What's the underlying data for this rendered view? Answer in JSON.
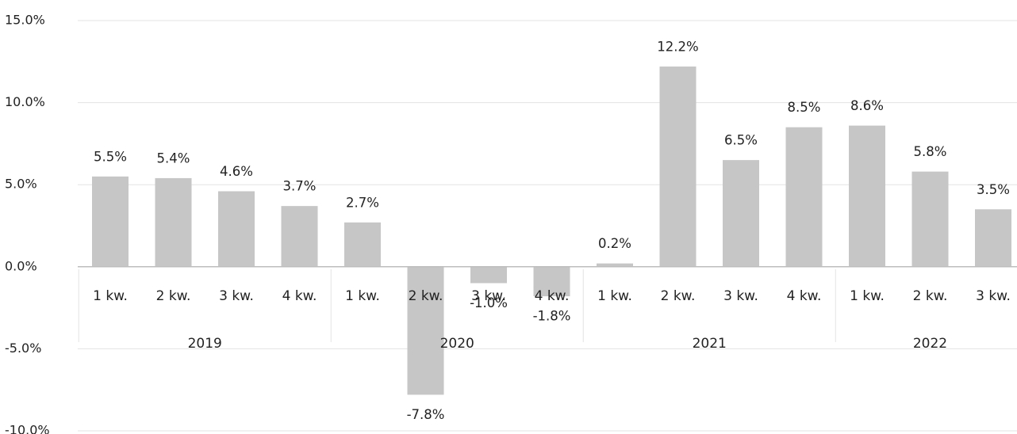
{
  "chart_data": {
    "type": "bar",
    "ylim": [
      -10,
      15
    ],
    "grid": true,
    "y_ticks": [
      15,
      10,
      5,
      0,
      -5,
      -10
    ],
    "y_tick_labels": [
      "15.0%",
      "10.0%",
      "5.0%",
      "0.0%",
      "-5.0%",
      "-10.0%"
    ],
    "groups": [
      {
        "label": "2019",
        "categories": [
          "1 kw.",
          "2 kw.",
          "3 kw.",
          "4 kw."
        ]
      },
      {
        "label": "2020",
        "categories": [
          "1 kw.",
          "2 kw.",
          "3 kw.",
          "4 kw."
        ]
      },
      {
        "label": "2021",
        "categories": [
          "1 kw.",
          "2 kw.",
          "3 kw.",
          "4 kw."
        ]
      },
      {
        "label": "2022",
        "categories": [
          "1 kw.",
          "2 kw.",
          "3 kw."
        ]
      }
    ],
    "series": [
      {
        "values": [
          5.5,
          5.4,
          4.6,
          3.7,
          2.7,
          -7.8,
          -1.0,
          -1.8,
          0.2,
          12.2,
          6.5,
          8.5,
          8.6,
          5.8,
          3.5
        ],
        "labels": [
          "5.5%",
          "5.4%",
          "4.6%",
          "3.7%",
          "2.7%",
          "-7.8%",
          "-1.0%",
          "-1.8%",
          "0.2%",
          "12.2%",
          "6.5%",
          "8.5%",
          "8.6%",
          "5.8%",
          "3.5%"
        ],
        "color": "#c6c6c6"
      }
    ],
    "colors": {
      "bar": "#c6c6c6",
      "grid": "#e3e3e3",
      "axis": "#bdbdbd",
      "text": "#222222"
    }
  }
}
